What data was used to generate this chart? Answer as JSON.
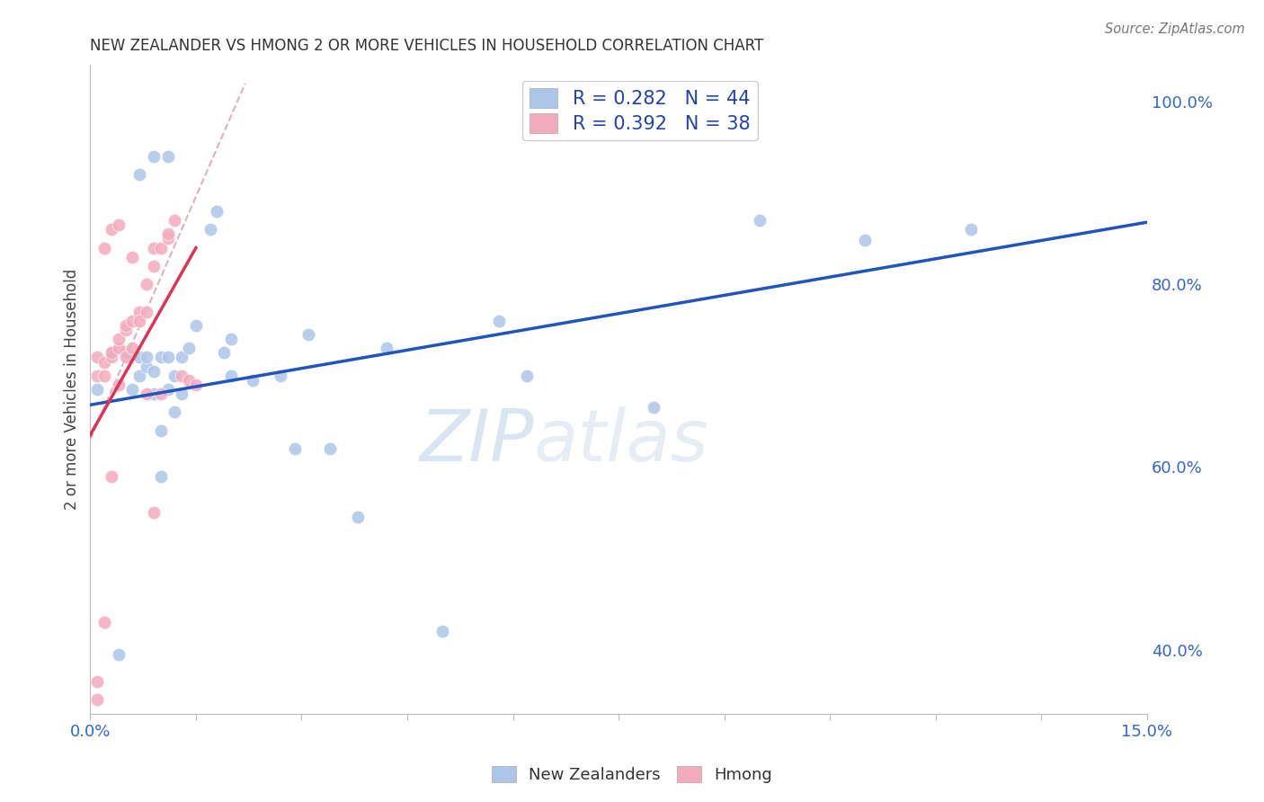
{
  "title": "NEW ZEALANDER VS HMONG 2 OR MORE VEHICLES IN HOUSEHOLD CORRELATION CHART",
  "source": "Source: ZipAtlas.com",
  "ylabel": "2 or more Vehicles in Household",
  "xlim": [
    0.0,
    0.15
  ],
  "ylim": [
    0.33,
    1.04
  ],
  "xtick_positions": [
    0.0,
    0.015,
    0.03,
    0.045,
    0.06,
    0.075,
    0.09,
    0.105,
    0.12,
    0.135,
    0.15
  ],
  "xtick_labels_show": {
    "0.0": "0.0%",
    "0.15": "15.0%"
  },
  "yticks_right": [
    0.4,
    0.6,
    0.8,
    1.0
  ],
  "ytick_labels_right": [
    "40.0%",
    "60.0%",
    "80.0%",
    "100.0%"
  ],
  "nz_color": "#adc6e8",
  "hmong_color": "#f4abbe",
  "nz_line_color": "#2255bb",
  "hmong_line_color": "#dd3355",
  "dashed_line_color": "#e0b0c0",
  "R_nz": 0.282,
  "N_nz": 44,
  "R_hmong": 0.392,
  "N_hmong": 38,
  "legend_labels": [
    "New Zealanders",
    "Hmong"
  ],
  "watermark_zip": "ZIP",
  "watermark_atlas": "atlas",
  "nz_scatter_x": [
    0.001,
    0.003,
    0.004,
    0.005,
    0.006,
    0.007,
    0.007,
    0.008,
    0.008,
    0.009,
    0.009,
    0.01,
    0.01,
    0.01,
    0.011,
    0.011,
    0.012,
    0.012,
    0.013,
    0.013,
    0.014,
    0.015,
    0.017,
    0.018,
    0.019,
    0.02,
    0.02,
    0.023,
    0.027,
    0.029,
    0.031,
    0.034,
    0.038,
    0.042,
    0.05,
    0.058,
    0.062,
    0.08,
    0.095,
    0.11,
    0.125,
    0.007,
    0.009,
    0.011
  ],
  "nz_scatter_y": [
    0.685,
    0.725,
    0.395,
    0.725,
    0.685,
    0.7,
    0.72,
    0.71,
    0.72,
    0.705,
    0.68,
    0.72,
    0.64,
    0.59,
    0.685,
    0.72,
    0.66,
    0.7,
    0.68,
    0.72,
    0.73,
    0.755,
    0.86,
    0.88,
    0.725,
    0.74,
    0.7,
    0.695,
    0.7,
    0.62,
    0.745,
    0.62,
    0.545,
    0.73,
    0.42,
    0.76,
    0.7,
    0.665,
    0.87,
    0.848,
    0.86,
    0.92,
    0.94,
    0.94
  ],
  "hmong_scatter_x": [
    0.001,
    0.001,
    0.002,
    0.002,
    0.003,
    0.003,
    0.004,
    0.004,
    0.005,
    0.005,
    0.005,
    0.006,
    0.006,
    0.007,
    0.007,
    0.008,
    0.008,
    0.009,
    0.009,
    0.01,
    0.011,
    0.011,
    0.012,
    0.013,
    0.014,
    0.015,
    0.003,
    0.004,
    0.006,
    0.008,
    0.002,
    0.009,
    0.01,
    0.002,
    0.003,
    0.004,
    0.001,
    0.001
  ],
  "hmong_scatter_y": [
    0.7,
    0.72,
    0.7,
    0.715,
    0.72,
    0.725,
    0.73,
    0.74,
    0.75,
    0.755,
    0.72,
    0.76,
    0.73,
    0.77,
    0.76,
    0.77,
    0.8,
    0.82,
    0.84,
    0.84,
    0.85,
    0.855,
    0.87,
    0.7,
    0.695,
    0.69,
    0.86,
    0.865,
    0.83,
    0.68,
    0.84,
    0.55,
    0.68,
    0.43,
    0.59,
    0.69,
    0.345,
    0.365
  ],
  "background_color": "#ffffff",
  "grid_color": "#dddddd",
  "nz_line_x": [
    0.0,
    0.15
  ],
  "nz_line_y": [
    0.668,
    0.868
  ],
  "hmong_line_x": [
    0.0,
    0.015
  ],
  "hmong_line_y": [
    0.635,
    0.84
  ]
}
